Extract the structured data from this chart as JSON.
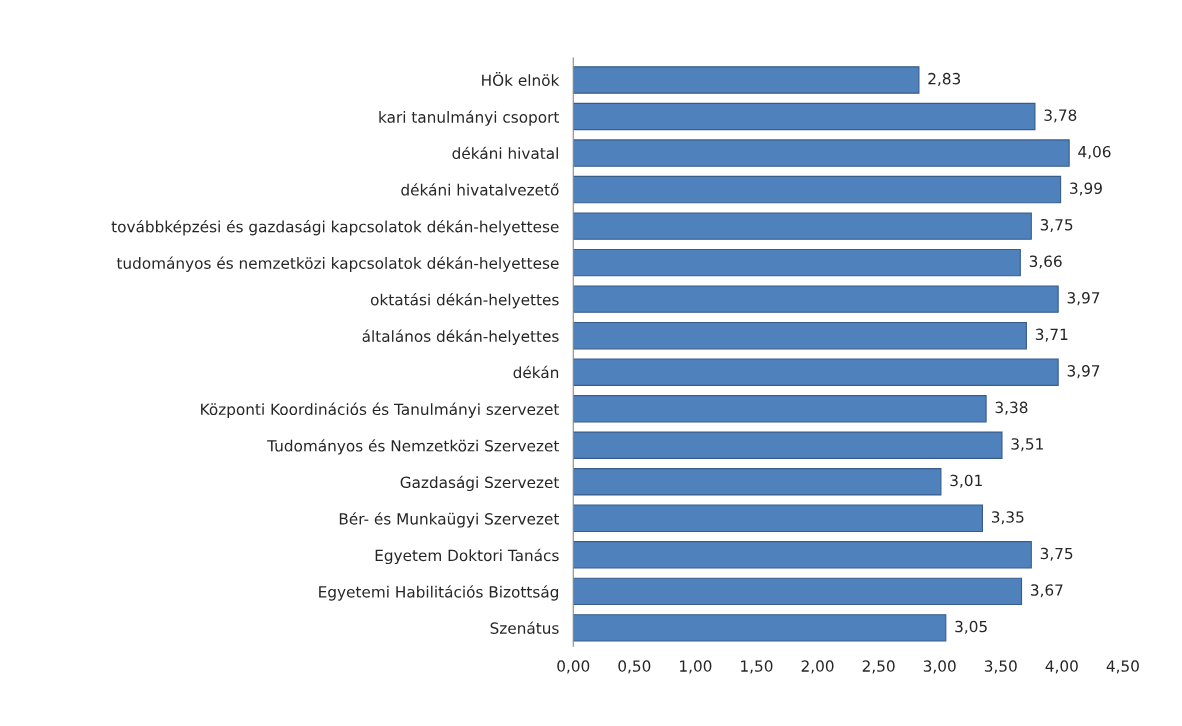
{
  "chart_data": {
    "type": "bar",
    "orientation": "horizontal",
    "categories": [
      "HÖk elnök",
      "kari tanulmányi csoport",
      "dékáni hivatal",
      "dékáni hivatalvezető",
      "továbbképzési és gazdasági kapcsolatok dékán-helyettese",
      "tudományos és nemzetközi kapcsolatok dékán-helyettese",
      "oktatási dékán-helyettes",
      "általános dékán-helyettes",
      "dékán",
      "Központi Koordinációs és Tanulmányi szervezet",
      "Tudományos és Nemzetközi Szervezet",
      "Gazdasági Szervezet",
      "Bér- és Munkaügyi Szervezet",
      "Egyetem Doktori Tanács",
      "Egyetemi Habilitációs Bizottság",
      "Szenátus"
    ],
    "values": [
      2.83,
      3.78,
      4.06,
      3.99,
      3.75,
      3.66,
      3.97,
      3.71,
      3.97,
      3.38,
      3.51,
      3.01,
      3.35,
      3.75,
      3.67,
      3.05
    ],
    "value_labels": [
      "2,83",
      "3,78",
      "4,06",
      "3,99",
      "3,75",
      "3,66",
      "3,97",
      "3,71",
      "3,97",
      "3,38",
      "3,51",
      "3,01",
      "3,35",
      "3,75",
      "3,67",
      "3,05"
    ],
    "color": "#4f81bd",
    "xlim": [
      0,
      4.5
    ],
    "xticks": [
      {
        "value": 0,
        "label": "0,00"
      },
      {
        "value": 0.5,
        "label": "0,50"
      },
      {
        "value": 1,
        "label": "1,00"
      },
      {
        "value": 1.5,
        "label": "1,50"
      },
      {
        "value": 2,
        "label": "2,00"
      },
      {
        "value": 2.5,
        "label": "2,50"
      },
      {
        "value": 3,
        "label": "3,00"
      },
      {
        "value": 3.5,
        "label": "3,50"
      },
      {
        "value": 4,
        "label": "4,00"
      },
      {
        "value": 4.5,
        "label": "4,50"
      }
    ],
    "grid": false,
    "legend": false
  }
}
